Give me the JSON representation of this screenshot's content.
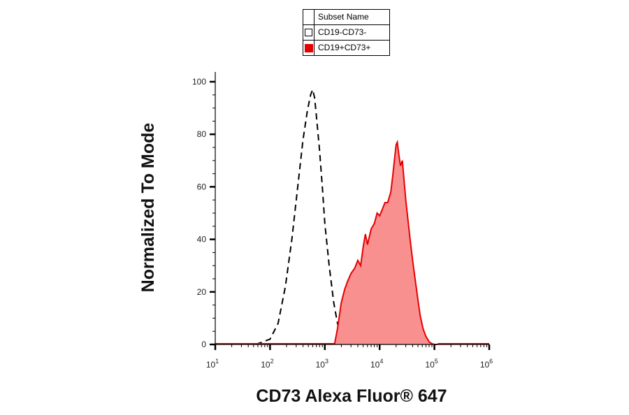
{
  "legend": {
    "header": "Subset Name",
    "entries": [
      {
        "label": "CD19-CD73-",
        "fill": "none",
        "stroke": "#000000"
      },
      {
        "label": "CD19+CD73+",
        "fill": "#e60000",
        "stroke": "#e60000"
      }
    ]
  },
  "chart_data": {
    "type": "area",
    "xlabel": "CD73 Alexa Fluor® 647",
    "ylabel": "Normalized To Mode",
    "x_scale": "log",
    "xlim": [
      10,
      1000000
    ],
    "ylim": [
      0,
      100
    ],
    "x_tick_labels": [
      {
        "base": "10",
        "exp": "1",
        "value": 10
      },
      {
        "base": "10",
        "exp": "2",
        "value": 100
      },
      {
        "base": "10",
        "exp": "3",
        "value": 1000
      },
      {
        "base": "10",
        "exp": "4",
        "value": 10000
      },
      {
        "base": "10",
        "exp": "5",
        "value": 100000
      },
      {
        "base": "10",
        "exp": "6",
        "value": 1000000
      }
    ],
    "y_ticks": [
      0,
      20,
      40,
      60,
      80,
      100
    ],
    "grid": false,
    "legend_position": "top-center",
    "series": [
      {
        "name": "CD19-CD73-",
        "style": "dashed",
        "color": "#000000",
        "fill": "none",
        "x": [
          55,
          100,
          140,
          190,
          250,
          320,
          400,
          480,
          550,
          600,
          650,
          700,
          800,
          900,
          1000,
          1200,
          1450,
          1700,
          2000,
          2500
        ],
        "y": [
          0,
          2,
          8,
          22,
          40,
          60,
          78,
          89,
          95,
          97,
          94,
          87,
          74,
          60,
          46,
          30,
          16,
          8,
          3,
          0
        ]
      },
      {
        "name": "CD19+CD73+",
        "style": "filled",
        "color": "#e60000",
        "fill": "#f99090",
        "x": [
          1500,
          1700,
          2000,
          2300,
          2600,
          3000,
          3500,
          4000,
          4500,
          5000,
          5500,
          6000,
          7000,
          8000,
          9000,
          10000,
          11000,
          12500,
          14000,
          16000,
          17500,
          19000,
          20000,
          21000,
          22500,
          24000,
          26000,
          28000,
          30000,
          33000,
          36000,
          40000,
          45000,
          50000,
          55000,
          62000,
          70000,
          80000,
          90000,
          100000,
          115000
        ],
        "y": [
          0,
          6,
          16,
          21,
          24,
          27,
          29,
          32,
          30,
          37,
          42,
          38,
          44,
          46,
          50,
          49,
          51,
          54,
          54,
          58,
          65,
          72,
          76,
          77,
          72,
          68,
          70,
          62,
          55,
          47,
          40,
          32,
          24,
          17,
          11,
          6,
          3,
          1,
          0.3,
          0,
          0
        ]
      }
    ]
  }
}
